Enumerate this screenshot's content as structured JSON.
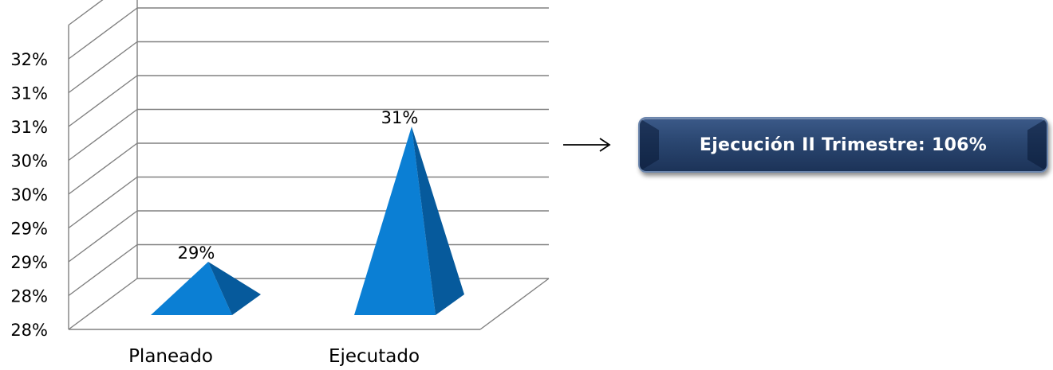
{
  "chart_data": {
    "type": "bar",
    "shape": "pyramid-3d",
    "categories": [
      "Planeado",
      "Ejecutado"
    ],
    "values": [
      29,
      31
    ],
    "data_labels": [
      "29%",
      "31%"
    ],
    "y_tick_labels": [
      "28%",
      "28%",
      "29%",
      "29%",
      "30%",
      "30%",
      "31%",
      "31%",
      "32%"
    ],
    "ylim": [
      28,
      32
    ],
    "grid": true,
    "title": "",
    "xlabel": "",
    "ylabel": "",
    "colors": {
      "front": "#0b7fd4",
      "side": "#065a9c",
      "grid": "#808080"
    }
  },
  "annotation": {
    "arrow": "→",
    "label": "Ejecución II Trimestre: 106%"
  }
}
